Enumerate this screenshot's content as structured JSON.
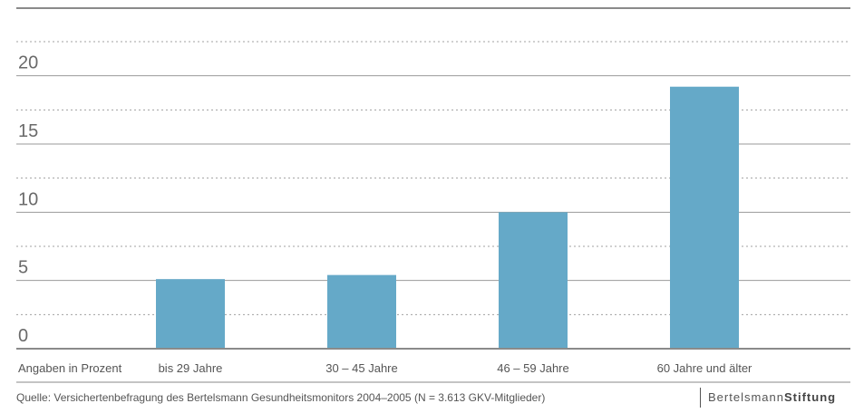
{
  "chart_data": {
    "type": "bar",
    "categories": [
      "bis 29 Jahre",
      "30 – 45 Jahre",
      "46 – 59 Jahre",
      "60 Jahre und älter"
    ],
    "values": [
      5.1,
      5.4,
      10.0,
      19.2
    ],
    "yticks": [
      0,
      5,
      10,
      15,
      20
    ],
    "ylim": [
      0,
      22.5
    ],
    "ylabel": "Angaben in Prozent",
    "bar_color": "#65a9c8",
    "grid": true
  },
  "footer": {
    "source": "Quelle: Versichertenbefragung des Bertelsmann Gesundheitsmonitors 2004–2005 (N = 3.613 GKV-Mitglieder)",
    "brand_regular": "Bertelsmann",
    "brand_bold": "Stiftung"
  }
}
